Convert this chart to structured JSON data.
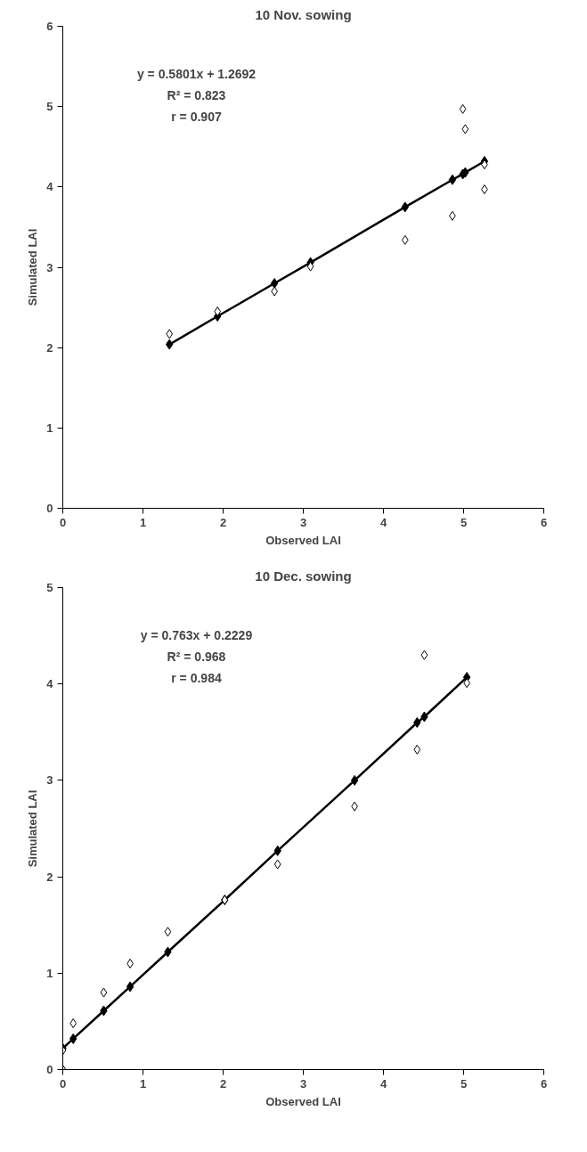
{
  "chart_data": [
    {
      "type": "scatter",
      "title": "10 Nov. sowing",
      "xlabel": "Observed LAI",
      "ylabel": "Simulated LAI",
      "xlim": [
        0,
        6
      ],
      "ylim": [
        0,
        6
      ],
      "xticks": [
        0,
        1,
        2,
        3,
        4,
        5,
        6
      ],
      "yticks": [
        0,
        1,
        2,
        3,
        4,
        5,
        6
      ],
      "grid": false,
      "annotations": [
        "y = 0.5801x + 1.2692",
        "R² = 0.823",
        "r = 0.907"
      ],
      "series": [
        {
          "type": "scatter",
          "marker": "diamond",
          "color": "#000000",
          "x": [
            1.33,
            1.93,
            2.64,
            3.09,
            4.27,
            4.86,
            4.99,
            5.02,
            5.26,
            5.26
          ],
          "values": [
            2.17,
            2.45,
            2.7,
            3.01,
            3.34,
            3.64,
            4.97,
            4.72,
            4.28,
            3.97
          ]
        },
        {
          "type": "line",
          "marker": "diamond",
          "color": "#000000",
          "x": [
            1.33,
            1.93,
            2.64,
            3.09,
            4.27,
            4.86,
            4.99,
            5.02,
            5.26
          ],
          "values": [
            2.04,
            2.39,
            2.8,
            3.06,
            3.75,
            4.09,
            4.16,
            4.18,
            4.32
          ]
        }
      ]
    },
    {
      "type": "scatter",
      "title": "10 Dec. sowing",
      "xlabel": "Observed LAI",
      "ylabel": "Simulated LAI",
      "xlim": [
        0,
        6
      ],
      "ylim": [
        0,
        5
      ],
      "xticks": [
        0,
        1,
        2,
        3,
        4,
        5,
        6
      ],
      "yticks": [
        0,
        1,
        2,
        3,
        4,
        5
      ],
      "grid": false,
      "annotations": [
        "y = 0.763x + 0.2229",
        "R² = 0.968",
        "r = 0.984"
      ],
      "series": [
        {
          "type": "scatter",
          "marker": "diamond",
          "color": "#000000",
          "x": [
            0,
            0,
            0.13,
            0.51,
            0.84,
            1.31,
            2.02,
            2.68,
            3.64,
            4.42,
            4.51,
            5.04
          ],
          "values": [
            0,
            0.2,
            0.48,
            0.8,
            1.1,
            1.43,
            1.76,
            2.13,
            2.73,
            3.32,
            4.3,
            4.01
          ]
        },
        {
          "type": "line",
          "marker": "diamond",
          "color": "#000000",
          "x": [
            0,
            0.13,
            0.51,
            0.84,
            1.31,
            2.02,
            2.68,
            3.64,
            4.42,
            4.51,
            5.04
          ],
          "values": [
            0.22,
            0.32,
            0.61,
            0.86,
            1.22,
            1.76,
            2.27,
            3.0,
            3.6,
            3.66,
            4.07
          ]
        }
      ]
    }
  ]
}
